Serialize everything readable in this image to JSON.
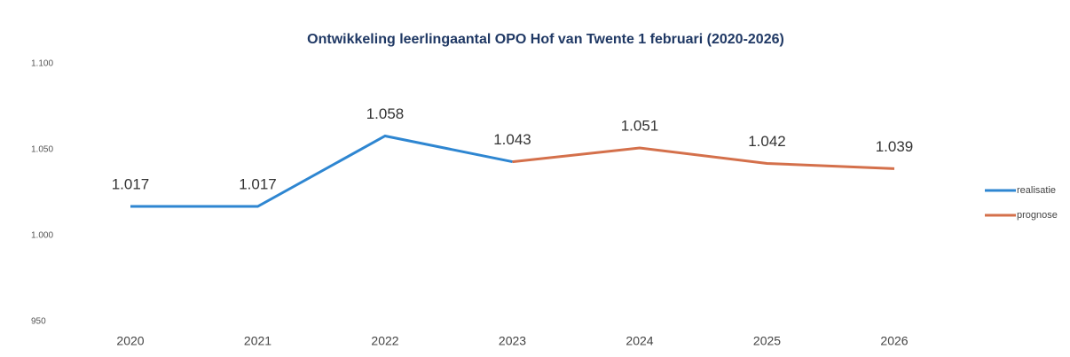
{
  "chart_data": {
    "type": "line",
    "title": "Ontwikkeling leerlingaantal OPO Hof van Twente 1 februari (2020-2026)",
    "categories": [
      "2020",
      "2021",
      "2022",
      "2023",
      "2024",
      "2025",
      "2026"
    ],
    "series": [
      {
        "name": "realisatie",
        "color": "#2e86d1",
        "values": [
          1017,
          1017,
          1058,
          1043,
          null,
          null,
          null
        ],
        "value_labels": [
          "1.017",
          "1.017",
          "1.058",
          "1.043",
          null,
          null,
          null
        ]
      },
      {
        "name": "prognose",
        "color": "#d4704b",
        "values": [
          null,
          null,
          null,
          1043,
          1051,
          1042,
          1039
        ],
        "value_labels": [
          null,
          null,
          null,
          null,
          "1.051",
          "1.042",
          "1.039"
        ]
      }
    ],
    "ylim": [
      950,
      1100
    ],
    "yticks": [
      {
        "value": 950,
        "label": "950"
      },
      {
        "value": 1000,
        "label": "1.000"
      },
      {
        "value": 1050,
        "label": "1.050"
      },
      {
        "value": 1100,
        "label": "1.100"
      }
    ],
    "grid": false,
    "legend": "right"
  }
}
